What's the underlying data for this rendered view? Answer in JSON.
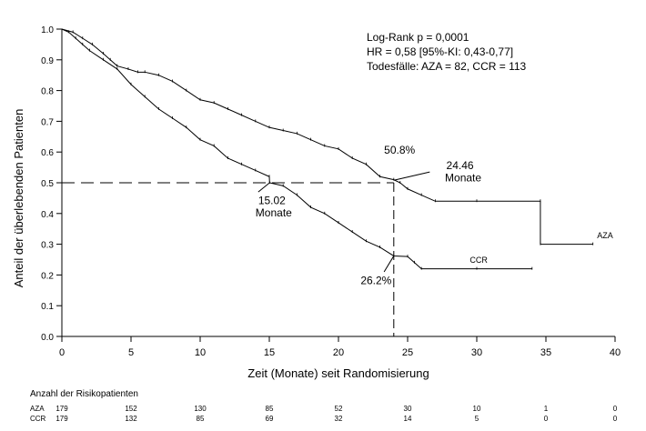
{
  "chart_data": {
    "type": "line",
    "xlabel": "Zeit (Monate) seit Randomisierung",
    "ylabel": "Anteil der überlebenden Patienten",
    "xlim": [
      0,
      40
    ],
    "ylim": [
      0,
      1.0
    ],
    "x_ticks": [
      0,
      5,
      10,
      15,
      20,
      25,
      30,
      35,
      40
    ],
    "y_ticks": [
      0.0,
      0.1,
      0.2,
      0.3,
      0.4,
      0.5,
      0.6,
      0.7,
      0.8,
      0.9,
      1.0
    ],
    "x_tick_labels": [
      "0",
      "5",
      "10",
      "15",
      "20",
      "25",
      "30",
      "35",
      "40"
    ],
    "y_tick_labels": [
      "0.0",
      "0.1",
      "0.2",
      "0.3",
      "0.4",
      "0.5",
      "0.6",
      "0.7",
      "0.8",
      "0.9",
      "1.0"
    ],
    "grid": false,
    "legend_lines": [
      "Log-Rank p = 0,0001",
      "HR = 0,58 [95%-KI: 0,43-0,77]",
      "Todesfälle: AZA = 82, CCR = 113"
    ],
    "series": [
      {
        "name": "AZA",
        "points": [
          [
            0,
            1.0
          ],
          [
            0.8,
            0.99
          ],
          [
            1.5,
            0.97
          ],
          [
            2.2,
            0.95
          ],
          [
            3,
            0.92
          ],
          [
            3.5,
            0.9
          ],
          [
            4,
            0.88
          ],
          [
            4.8,
            0.87
          ],
          [
            5.5,
            0.86
          ],
          [
            6,
            0.86
          ],
          [
            7,
            0.85
          ],
          [
            8,
            0.83
          ],
          [
            9,
            0.8
          ],
          [
            10,
            0.77
          ],
          [
            11,
            0.76
          ],
          [
            12,
            0.74
          ],
          [
            13,
            0.72
          ],
          [
            14,
            0.7
          ],
          [
            15,
            0.68
          ],
          [
            16,
            0.67
          ],
          [
            17,
            0.66
          ],
          [
            18,
            0.64
          ],
          [
            19,
            0.62
          ],
          [
            20,
            0.61
          ],
          [
            21,
            0.58
          ],
          [
            22,
            0.56
          ],
          [
            23,
            0.52
          ],
          [
            24,
            0.51
          ],
          [
            24.46,
            0.5
          ],
          [
            25,
            0.48
          ],
          [
            26,
            0.46
          ],
          [
            27,
            0.44
          ],
          [
            30,
            0.44
          ],
          [
            34.6,
            0.44
          ],
          [
            34.6,
            0.3
          ],
          [
            38.4,
            0.3
          ]
        ]
      },
      {
        "name": "CCR",
        "points": [
          [
            0,
            1.0
          ],
          [
            0.5,
            0.99
          ],
          [
            1,
            0.97
          ],
          [
            1.5,
            0.95
          ],
          [
            2,
            0.93
          ],
          [
            3,
            0.9
          ],
          [
            4,
            0.87
          ],
          [
            5,
            0.82
          ],
          [
            6,
            0.78
          ],
          [
            7,
            0.74
          ],
          [
            8,
            0.71
          ],
          [
            9,
            0.68
          ],
          [
            10,
            0.64
          ],
          [
            11,
            0.62
          ],
          [
            12,
            0.58
          ],
          [
            13,
            0.56
          ],
          [
            14,
            0.54
          ],
          [
            15,
            0.52
          ],
          [
            15.02,
            0.5
          ],
          [
            16,
            0.49
          ],
          [
            17,
            0.46
          ],
          [
            18,
            0.42
          ],
          [
            19,
            0.4
          ],
          [
            20,
            0.37
          ],
          [
            21,
            0.34
          ],
          [
            22,
            0.31
          ],
          [
            23,
            0.29
          ],
          [
            24,
            0.262
          ],
          [
            25,
            0.26
          ],
          [
            25.5,
            0.24
          ],
          [
            26,
            0.22
          ],
          [
            30,
            0.22
          ],
          [
            34,
            0.22
          ]
        ]
      }
    ],
    "series_labels": [
      {
        "series": "AZA",
        "text": "AZA",
        "x": 38.7,
        "y": 0.32
      },
      {
        "series": "CCR",
        "text": "CCR",
        "x": 29.5,
        "y": 0.24
      }
    ],
    "reference_lines": {
      "horizontal_y": 0.5,
      "vertical_x": 24
    },
    "annotations": [
      {
        "text": "50.8%",
        "x": 23.3,
        "y": 0.595
      },
      {
        "text": "24.46",
        "x": 27.8,
        "y": 0.545
      },
      {
        "text": "Monate",
        "x": 27.7,
        "y": 0.505
      },
      {
        "text": "15.02",
        "x": 14.2,
        "y": 0.43
      },
      {
        "text": "Monate",
        "x": 14.0,
        "y": 0.39
      },
      {
        "text": "26.2%",
        "x": 21.6,
        "y": 0.17
      }
    ],
    "annotation_lines": [
      {
        "x1": 24,
        "y1": 0.508,
        "x2": 26.6,
        "y2": 0.535
      },
      {
        "x1": 15.02,
        "y1": 0.5,
        "x2": 14.2,
        "y2": 0.47
      },
      {
        "x1": 24,
        "y1": 0.262,
        "x2": 23.3,
        "y2": 0.21
      }
    ]
  },
  "risk_table": {
    "title": "Anzahl der Risikopatienten",
    "columns": [
      "0",
      "5",
      "10",
      "15",
      "20",
      "25",
      "30",
      "35",
      "40"
    ],
    "rows": [
      {
        "label": "AZA",
        "values": [
          "179",
          "152",
          "130",
          "85",
          "52",
          "30",
          "10",
          "1",
          "0"
        ]
      },
      {
        "label": "CCR",
        "values": [
          "179",
          "132",
          "85",
          "69",
          "32",
          "14",
          "5",
          "0",
          "0"
        ]
      }
    ]
  }
}
